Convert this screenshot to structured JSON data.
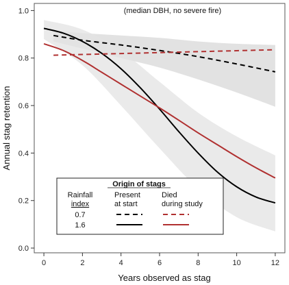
{
  "chart_data": {
    "type": "line",
    "annotation": "(median DBH, no severe fire)",
    "xlabel": "Years observed as stag",
    "ylabel": "Annual stag retention",
    "xlim": [
      -0.5,
      12.5
    ],
    "ylim": [
      -0.02,
      1.03
    ],
    "xticks": [
      "0",
      "2",
      "4",
      "6",
      "8",
      "10",
      "12"
    ],
    "yticks": [
      "0.0",
      "0.2",
      "0.4",
      "0.6",
      "0.8",
      "1.0"
    ],
    "grid": false,
    "legend": {
      "position": "bottom-left",
      "title": "Origin of stags",
      "col_header_rainfall": [
        "Rainfall",
        "index"
      ],
      "col_header_present": [
        "Present",
        "at start"
      ],
      "col_header_died": [
        "Died",
        "during study"
      ],
      "rows": [
        "0.7",
        "1.6"
      ]
    },
    "series": [
      {
        "origin": "Present at start",
        "rainfall": "0.7",
        "color": "#000000",
        "dash": "dashed",
        "x": [
          0.5,
          2,
          4,
          6,
          8,
          10,
          12
        ],
        "y": [
          0.895,
          0.875,
          0.855,
          0.832,
          0.806,
          0.775,
          0.742
        ]
      },
      {
        "origin": "Present at start",
        "rainfall": "1.6",
        "color": "#000000",
        "dash": "solid",
        "x": [
          0,
          1,
          2,
          3,
          4,
          5,
          6,
          7,
          8,
          9,
          10,
          11,
          12
        ],
        "y": [
          0.925,
          0.905,
          0.87,
          0.82,
          0.755,
          0.675,
          0.585,
          0.49,
          0.4,
          0.32,
          0.258,
          0.215,
          0.19
        ]
      },
      {
        "origin": "Died during study",
        "rainfall": "0.7",
        "color": "#b03030",
        "dash": "dashed",
        "x": [
          0.5,
          2,
          4,
          6,
          8,
          10,
          12
        ],
        "y": [
          0.812,
          0.815,
          0.819,
          0.823,
          0.827,
          0.831,
          0.835
        ]
      },
      {
        "origin": "Died during study",
        "rainfall": "1.6",
        "color": "#b03030",
        "dash": "solid",
        "x": [
          0,
          1,
          2,
          3,
          4,
          5,
          6,
          7,
          8,
          9,
          10,
          11,
          12
        ],
        "y": [
          0.86,
          0.832,
          0.79,
          0.74,
          0.69,
          0.64,
          0.59,
          0.538,
          0.485,
          0.435,
          0.385,
          0.338,
          0.295
        ]
      }
    ],
    "bands": [
      {
        "color": "#d8d8d8",
        "x": [
          0.5,
          2,
          4,
          6,
          8,
          10,
          12
        ],
        "upper": [
          0.915,
          0.905,
          0.895,
          0.885,
          0.87,
          0.86,
          0.855
        ],
        "lower": [
          0.87,
          0.84,
          0.8,
          0.76,
          0.71,
          0.655,
          0.595
        ]
      },
      {
        "color": "#e3e3e3",
        "x": [
          0,
          2,
          4,
          6,
          8,
          10,
          12
        ],
        "upper": [
          0.96,
          0.92,
          0.83,
          0.7,
          0.57,
          0.47,
          0.39
        ],
        "lower": [
          0.88,
          0.77,
          0.6,
          0.42,
          0.25,
          0.13,
          0.07
        ]
      }
    ]
  }
}
